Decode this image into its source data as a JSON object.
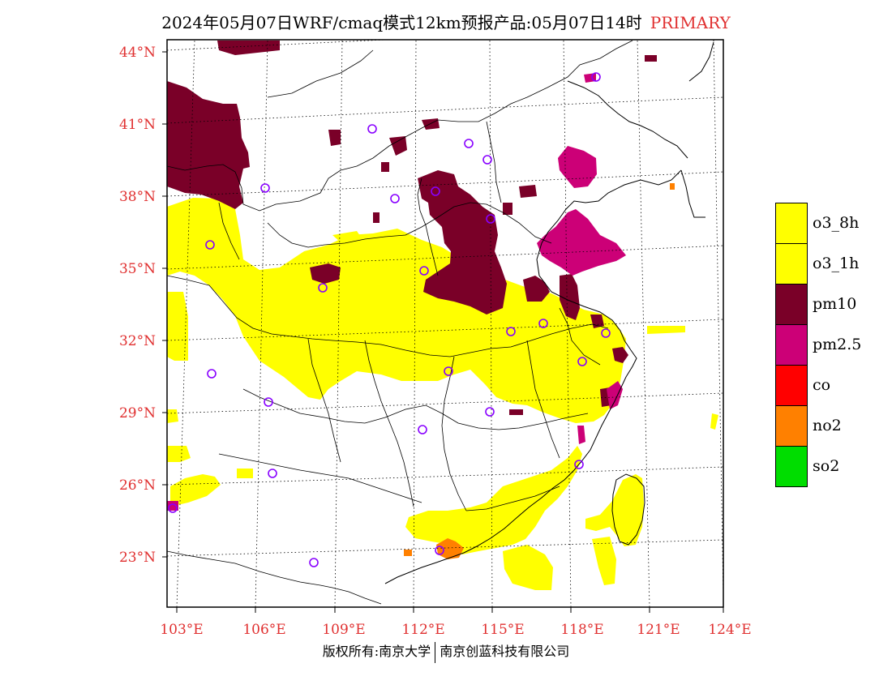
{
  "header": {
    "title": "2024年05月07日WRF/cmaq模式12km预报产品:05月07日14时",
    "tag": "PRIMARY"
  },
  "colors": {
    "axis_label": "#e03030",
    "o3_8h": "#ffff00",
    "o3_1h": "#ffff00",
    "pm10": "#7a0028",
    "pm2_5": "#cc0077",
    "co": "#ff0000",
    "no2": "#ff8000",
    "so2": "#00dd00",
    "station_marker": "#8800ff"
  },
  "map": {
    "lat_labels": [
      "44°N",
      "41°N",
      "38°N",
      "35°N",
      "32°N",
      "29°N",
      "26°N",
      "23°N"
    ],
    "lon_labels": [
      "103°E",
      "106°E",
      "109°E",
      "112°E",
      "115°E",
      "118°E",
      "121°E",
      "124°E"
    ]
  },
  "legend": {
    "items": [
      {
        "label": "o3_8h",
        "color": "#ffff00"
      },
      {
        "label": "o3_1h",
        "color": "#ffff00"
      },
      {
        "label": "pm10",
        "color": "#7a0028"
      },
      {
        "label": "pm2.5",
        "color": "#cc0077"
      },
      {
        "label": "co",
        "color": "#ff0000"
      },
      {
        "label": "no2",
        "color": "#ff8000"
      },
      {
        "label": "so2",
        "color": "#00dd00"
      }
    ]
  },
  "footer": {
    "left": "版权所有:南京大学",
    "right": "南京创蓝科技有限公司"
  }
}
